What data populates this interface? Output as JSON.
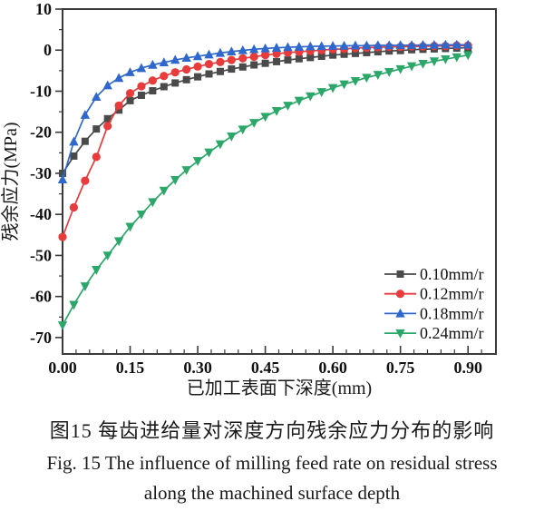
{
  "figure": {
    "caption_zh": "图15  每齿进给量对深度方向残余应力分布的影响",
    "caption_en_line1": "Fig. 15  The influence of milling feed rate on residual stress",
    "caption_en_line2": "along the machined surface depth"
  },
  "chart_data": {
    "type": "line",
    "title": "",
    "xlabel": "已加工表面下深度(mm)",
    "ylabel": "残余应力(MPa)",
    "xlim": [
      0,
      0.962
    ],
    "ylim": [
      -74,
      10
    ],
    "grid": false,
    "legend_position": "lower right",
    "frame_color": "#3a3a3a",
    "x_tick_labels": [
      "0.00",
      "0.15",
      "0.30",
      "0.45",
      "0.60",
      "0.75",
      "0.90"
    ],
    "x_major_ticks": [
      0.0,
      0.15,
      0.3,
      0.45,
      0.6,
      0.75,
      0.9
    ],
    "x_minor_step": 0.03,
    "y_tick_labels": [
      "10",
      "0",
      "-10",
      "-20",
      "-30",
      "-40",
      "-50",
      "-60",
      "-70"
    ],
    "y_major_ticks": [
      10,
      0,
      -10,
      -20,
      -30,
      -40,
      -50,
      -60,
      -70
    ],
    "y_minor_step": 5,
    "x": [
      0.0,
      0.025,
      0.05,
      0.075,
      0.1,
      0.125,
      0.15,
      0.175,
      0.2,
      0.225,
      0.25,
      0.275,
      0.3,
      0.325,
      0.35,
      0.375,
      0.4,
      0.425,
      0.45,
      0.475,
      0.5,
      0.525,
      0.55,
      0.575,
      0.6,
      0.625,
      0.65,
      0.675,
      0.7,
      0.725,
      0.75,
      0.775,
      0.8,
      0.825,
      0.85,
      0.875,
      0.9
    ],
    "series": [
      {
        "name": "0.10mm/r",
        "color": "#4a4a4a",
        "marker": "square",
        "values": [
          -30.0,
          -25.8,
          -22.2,
          -19.2,
          -16.7,
          -14.6,
          -12.3,
          -11.0,
          -9.9,
          -8.9,
          -8.0,
          -7.2,
          -6.5,
          -5.8,
          -5.2,
          -4.6,
          -4.1,
          -3.6,
          -3.2,
          -2.8,
          -2.4,
          -2.1,
          -1.8,
          -1.5,
          -1.2,
          -1.0,
          -0.8,
          -0.6,
          -0.4,
          -0.2,
          -0.1,
          0.1,
          0.2,
          0.3,
          0.4,
          0.5,
          0.6
        ]
      },
      {
        "name": "0.12mm/r",
        "color": "#e83b3b",
        "marker": "circle",
        "values": [
          -45.5,
          -38.3,
          -31.8,
          -26.0,
          -18.5,
          -13.5,
          -10.5,
          -8.8,
          -7.4,
          -6.3,
          -5.4,
          -4.7,
          -4.0,
          -3.4,
          -2.9,
          -2.4,
          -2.0,
          -1.6,
          -1.2,
          -0.9,
          -0.6,
          -0.4,
          -0.2,
          0.0,
          0.2,
          0.3,
          0.5,
          0.6,
          0.7,
          0.8,
          0.8,
          0.9,
          0.9,
          1.0,
          1.0,
          1.1,
          1.1
        ]
      },
      {
        "name": "0.18mm/r",
        "color": "#2e68cc",
        "marker": "triangle-up",
        "values": [
          -31.5,
          -22.3,
          -15.8,
          -11.4,
          -8.6,
          -6.8,
          -5.4,
          -4.4,
          -3.6,
          -3.0,
          -2.4,
          -1.9,
          -1.5,
          -1.1,
          -0.7,
          -0.35,
          -0.05,
          0.2,
          0.4,
          0.55,
          0.7,
          0.8,
          0.9,
          0.95,
          1.0,
          1.05,
          1.1,
          1.1,
          1.15,
          1.15,
          1.2,
          1.2,
          1.25,
          1.25,
          1.3,
          1.3,
          1.3
        ]
      },
      {
        "name": "0.24mm/r",
        "color": "#2ca76a",
        "marker": "triangle-down",
        "values": [
          -67.0,
          -62.0,
          -57.5,
          -53.5,
          -50.0,
          -46.5,
          -43.0,
          -40.0,
          -37.0,
          -34.2,
          -31.6,
          -29.2,
          -27.0,
          -24.9,
          -22.9,
          -21.0,
          -19.3,
          -17.7,
          -16.2,
          -14.8,
          -13.5,
          -12.3,
          -11.2,
          -10.2,
          -9.2,
          -8.3,
          -7.5,
          -6.7,
          -6.0,
          -5.3,
          -4.6,
          -3.9,
          -3.3,
          -2.7,
          -2.2,
          -1.7,
          -1.2
        ]
      }
    ]
  }
}
